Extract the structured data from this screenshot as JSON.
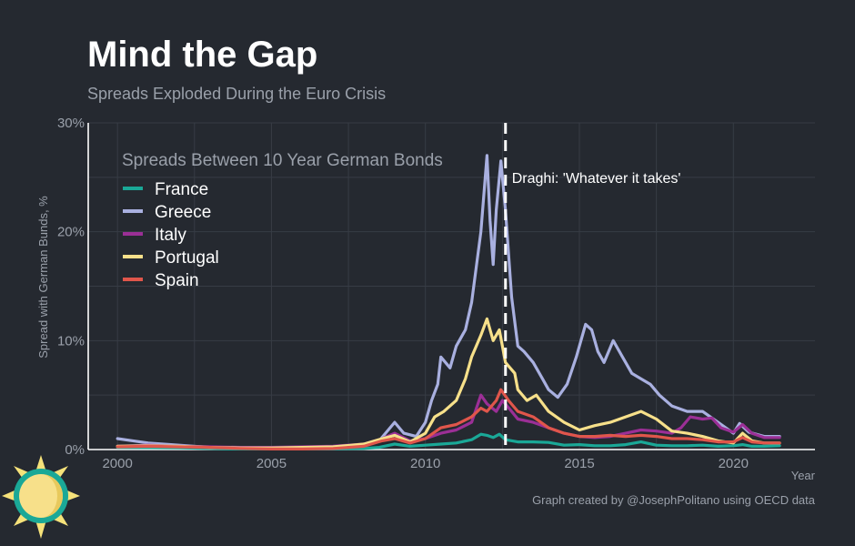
{
  "chart_data": {
    "type": "line",
    "title": "Mind the Gap",
    "subtitle": "Spreads Exploded During the Euro Crisis",
    "xlabel": "Year",
    "ylabel": "Spread with German Bunds, %",
    "xlim": [
      1999.05,
      2022.65
    ],
    "ylim": [
      0,
      30
    ],
    "x_ticks": [
      2000,
      2005,
      2010,
      2015,
      2020
    ],
    "x_tick_labels": [
      "2000",
      "2005",
      "2010",
      "2015",
      "2020"
    ],
    "y_ticks": [
      0,
      10,
      20,
      30
    ],
    "y_tick_labels": [
      "0%",
      "10%",
      "20%",
      "30%"
    ],
    "grid": true,
    "legend_title": "Spreads Between 10 Year German Bonds",
    "legend_position": "top-left",
    "annotation": {
      "x": 2012.6,
      "text": "Draghi: 'Whatever it takes'",
      "style": "dashed-vertical-line"
    },
    "caption": "Graph created by @JosephPolitano using OECD data",
    "series": [
      {
        "name": "France",
        "color": "#1aa897",
        "points": [
          [
            2000,
            0.2
          ],
          [
            2002,
            0.15
          ],
          [
            2004,
            0.05
          ],
          [
            2006,
            0.05
          ],
          [
            2008,
            0.1
          ],
          [
            2008.5,
            0.2
          ],
          [
            2009,
            0.5
          ],
          [
            2009.5,
            0.3
          ],
          [
            2010,
            0.4
          ],
          [
            2010.5,
            0.5
          ],
          [
            2011,
            0.6
          ],
          [
            2011.5,
            0.9
          ],
          [
            2011.8,
            1.4
          ],
          [
            2012,
            1.3
          ],
          [
            2012.2,
            1.1
          ],
          [
            2012.4,
            1.4
          ],
          [
            2012.6,
            0.9
          ],
          [
            2013,
            0.7
          ],
          [
            2013.5,
            0.7
          ],
          [
            2014,
            0.65
          ],
          [
            2014.5,
            0.4
          ],
          [
            2015,
            0.45
          ],
          [
            2015.5,
            0.35
          ],
          [
            2016,
            0.35
          ],
          [
            2016.5,
            0.45
          ],
          [
            2017,
            0.7
          ],
          [
            2017.5,
            0.4
          ],
          [
            2018,
            0.35
          ],
          [
            2018.5,
            0.35
          ],
          [
            2019,
            0.4
          ],
          [
            2019.5,
            0.3
          ],
          [
            2020,
            0.35
          ],
          [
            2020.3,
            0.45
          ],
          [
            2020.6,
            0.3
          ],
          [
            2021,
            0.3
          ],
          [
            2021.5,
            0.35
          ]
        ]
      },
      {
        "name": "Greece",
        "color": "#a9b0e0",
        "points": [
          [
            2000,
            1.0
          ],
          [
            2000.5,
            0.8
          ],
          [
            2001,
            0.6
          ],
          [
            2002,
            0.4
          ],
          [
            2003,
            0.2
          ],
          [
            2004,
            0.15
          ],
          [
            2005,
            0.15
          ],
          [
            2006,
            0.2
          ],
          [
            2007,
            0.25
          ],
          [
            2008,
            0.4
          ],
          [
            2008.5,
            0.8
          ],
          [
            2009,
            2.5
          ],
          [
            2009.3,
            1.5
          ],
          [
            2009.7,
            1.2
          ],
          [
            2010,
            2.5
          ],
          [
            2010.2,
            4.5
          ],
          [
            2010.4,
            6.0
          ],
          [
            2010.5,
            8.5
          ],
          [
            2010.8,
            7.5
          ],
          [
            2011,
            9.5
          ],
          [
            2011.3,
            11.0
          ],
          [
            2011.5,
            13.5
          ],
          [
            2011.8,
            20.0
          ],
          [
            2012,
            27.0
          ],
          [
            2012.1,
            21.0
          ],
          [
            2012.2,
            17.0
          ],
          [
            2012.3,
            22.0
          ],
          [
            2012.45,
            26.5
          ],
          [
            2012.6,
            22.0
          ],
          [
            2012.8,
            14.0
          ],
          [
            2013,
            9.5
          ],
          [
            2013.2,
            9.0
          ],
          [
            2013.5,
            8.0
          ],
          [
            2013.8,
            6.5
          ],
          [
            2014,
            5.5
          ],
          [
            2014.3,
            4.8
          ],
          [
            2014.6,
            6.0
          ],
          [
            2014.9,
            8.5
          ],
          [
            2015.2,
            11.5
          ],
          [
            2015.4,
            11.0
          ],
          [
            2015.6,
            9.0
          ],
          [
            2015.8,
            8.0
          ],
          [
            2016.1,
            10.0
          ],
          [
            2016.4,
            8.5
          ],
          [
            2016.7,
            7.0
          ],
          [
            2017,
            6.5
          ],
          [
            2017.3,
            6.0
          ],
          [
            2017.6,
            5.0
          ],
          [
            2018,
            4.0
          ],
          [
            2018.5,
            3.5
          ],
          [
            2019,
            3.5
          ],
          [
            2019.5,
            2.5
          ],
          [
            2020,
            1.5
          ],
          [
            2020.2,
            2.4
          ],
          [
            2020.5,
            1.6
          ],
          [
            2021,
            1.2
          ],
          [
            2021.5,
            1.2
          ]
        ]
      },
      {
        "name": "Italy",
        "color": "#9b2f96",
        "points": [
          [
            2000,
            0.3
          ],
          [
            2001,
            0.4
          ],
          [
            2002,
            0.3
          ],
          [
            2003,
            0.25
          ],
          [
            2004,
            0.2
          ],
          [
            2005,
            0.2
          ],
          [
            2006,
            0.25
          ],
          [
            2007,
            0.3
          ],
          [
            2008,
            0.5
          ],
          [
            2008.6,
            1.0
          ],
          [
            2009,
            1.5
          ],
          [
            2009.5,
            0.8
          ],
          [
            2010,
            1.0
          ],
          [
            2010.5,
            1.5
          ],
          [
            2011,
            1.8
          ],
          [
            2011.5,
            2.5
          ],
          [
            2011.8,
            5.0
          ],
          [
            2012,
            4.2
          ],
          [
            2012.3,
            3.5
          ],
          [
            2012.5,
            4.5
          ],
          [
            2012.8,
            3.5
          ],
          [
            2013,
            2.8
          ],
          [
            2013.5,
            2.5
          ],
          [
            2014,
            2.0
          ],
          [
            2014.5,
            1.5
          ],
          [
            2015,
            1.2
          ],
          [
            2015.5,
            1.1
          ],
          [
            2016,
            1.2
          ],
          [
            2016.5,
            1.5
          ],
          [
            2017,
            1.8
          ],
          [
            2017.5,
            1.7
          ],
          [
            2018,
            1.5
          ],
          [
            2018.3,
            2.0
          ],
          [
            2018.6,
            3.0
          ],
          [
            2019,
            2.8
          ],
          [
            2019.3,
            2.9
          ],
          [
            2019.6,
            2.0
          ],
          [
            2020,
            1.6
          ],
          [
            2020.3,
            2.3
          ],
          [
            2020.6,
            1.5
          ],
          [
            2021,
            1.1
          ],
          [
            2021.5,
            1.1
          ]
        ]
      },
      {
        "name": "Portugal",
        "color": "#f7e08a",
        "points": [
          [
            2000,
            0.3
          ],
          [
            2001,
            0.35
          ],
          [
            2002,
            0.3
          ],
          [
            2003,
            0.2
          ],
          [
            2004,
            0.15
          ],
          [
            2005,
            0.15
          ],
          [
            2006,
            0.2
          ],
          [
            2007,
            0.25
          ],
          [
            2008,
            0.5
          ],
          [
            2008.6,
            1.0
          ],
          [
            2009,
            1.3
          ],
          [
            2009.5,
            0.7
          ],
          [
            2010,
            1.5
          ],
          [
            2010.3,
            3.0
          ],
          [
            2010.6,
            3.5
          ],
          [
            2011,
            4.5
          ],
          [
            2011.3,
            6.5
          ],
          [
            2011.5,
            8.5
          ],
          [
            2011.8,
            10.5
          ],
          [
            2012,
            12.0
          ],
          [
            2012.2,
            10.0
          ],
          [
            2012.4,
            11.0
          ],
          [
            2012.6,
            8.0
          ],
          [
            2012.9,
            7.0
          ],
          [
            2013,
            5.5
          ],
          [
            2013.3,
            4.5
          ],
          [
            2013.6,
            5.0
          ],
          [
            2014,
            3.5
          ],
          [
            2014.5,
            2.5
          ],
          [
            2015,
            1.8
          ],
          [
            2015.5,
            2.2
          ],
          [
            2016,
            2.5
          ],
          [
            2016.5,
            3.0
          ],
          [
            2017,
            3.5
          ],
          [
            2017.5,
            2.8
          ],
          [
            2018,
            1.7
          ],
          [
            2018.5,
            1.5
          ],
          [
            2019,
            1.2
          ],
          [
            2019.5,
            0.8
          ],
          [
            2020,
            0.6
          ],
          [
            2020.3,
            1.5
          ],
          [
            2020.6,
            0.8
          ],
          [
            2021,
            0.6
          ],
          [
            2021.5,
            0.6
          ]
        ]
      },
      {
        "name": "Spain",
        "color": "#e0564b",
        "points": [
          [
            2000,
            0.25
          ],
          [
            2001,
            0.3
          ],
          [
            2002,
            0.25
          ],
          [
            2003,
            0.2
          ],
          [
            2004,
            0.1
          ],
          [
            2005,
            0.05
          ],
          [
            2006,
            0.05
          ],
          [
            2007,
            0.1
          ],
          [
            2008,
            0.3
          ],
          [
            2008.6,
            0.8
          ],
          [
            2009,
            1.0
          ],
          [
            2009.5,
            0.6
          ],
          [
            2010,
            1.0
          ],
          [
            2010.5,
            2.0
          ],
          [
            2011,
            2.3
          ],
          [
            2011.5,
            3.0
          ],
          [
            2011.8,
            3.8
          ],
          [
            2012,
            3.5
          ],
          [
            2012.3,
            4.5
          ],
          [
            2012.45,
            5.5
          ],
          [
            2012.7,
            4.5
          ],
          [
            2013,
            3.5
          ],
          [
            2013.5,
            3.0
          ],
          [
            2014,
            2.0
          ],
          [
            2014.5,
            1.5
          ],
          [
            2015,
            1.2
          ],
          [
            2015.5,
            1.2
          ],
          [
            2016,
            1.3
          ],
          [
            2016.5,
            1.2
          ],
          [
            2017,
            1.3
          ],
          [
            2017.5,
            1.2
          ],
          [
            2018,
            1.0
          ],
          [
            2018.5,
            1.0
          ],
          [
            2019,
            0.9
          ],
          [
            2019.5,
            0.7
          ],
          [
            2020,
            0.7
          ],
          [
            2020.3,
            1.1
          ],
          [
            2020.6,
            0.7
          ],
          [
            2021,
            0.6
          ],
          [
            2021.5,
            0.6
          ]
        ]
      }
    ]
  }
}
